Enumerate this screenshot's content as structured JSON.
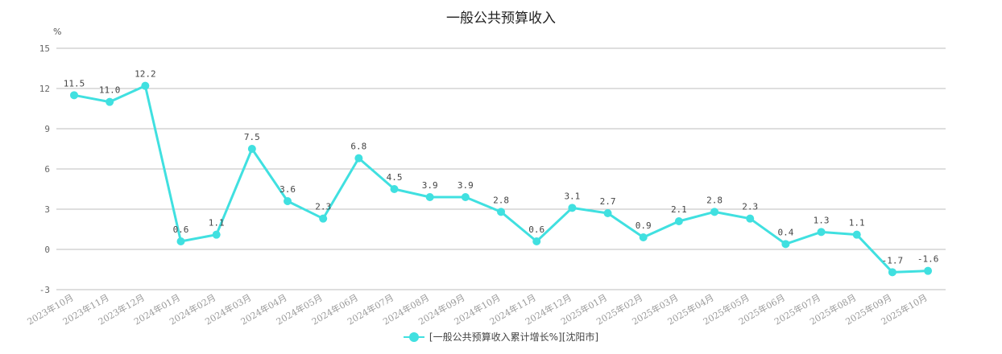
{
  "chart_data": {
    "type": "line",
    "title": "一般公共预算收入",
    "yunit": "%",
    "ylim": [
      -3,
      15
    ],
    "yticks": [
      -3,
      0,
      3,
      6,
      9,
      12,
      15
    ],
    "grid": true,
    "legend_position": "bottom",
    "categories": [
      "2023年10月",
      "2023年11月",
      "2023年12月",
      "2024年01月",
      "2024年02月",
      "2024年03月",
      "2024年04月",
      "2024年05月",
      "2024年06月",
      "2024年07月",
      "2024年08月",
      "2024年09月",
      "2024年10月",
      "2024年11月",
      "2024年12月",
      "2025年01月",
      "2025年02月",
      "2025年03月",
      "2025年04月",
      "2025年05月",
      "2025年06月",
      "2025年07月",
      "2025年08月",
      "2025年09月",
      "2025年10月"
    ],
    "series": [
      {
        "name": "[一般公共预算收入累计增长%][沈阳市]",
        "color": "#40e0e0",
        "values": [
          11.5,
          11.0,
          12.2,
          0.6,
          1.1,
          7.5,
          3.6,
          2.3,
          6.8,
          4.5,
          3.9,
          3.9,
          2.8,
          0.6,
          3.1,
          2.7,
          0.9,
          2.1,
          2.8,
          2.3,
          0.4,
          1.3,
          1.1,
          -1.7,
          -1.6
        ]
      }
    ]
  }
}
